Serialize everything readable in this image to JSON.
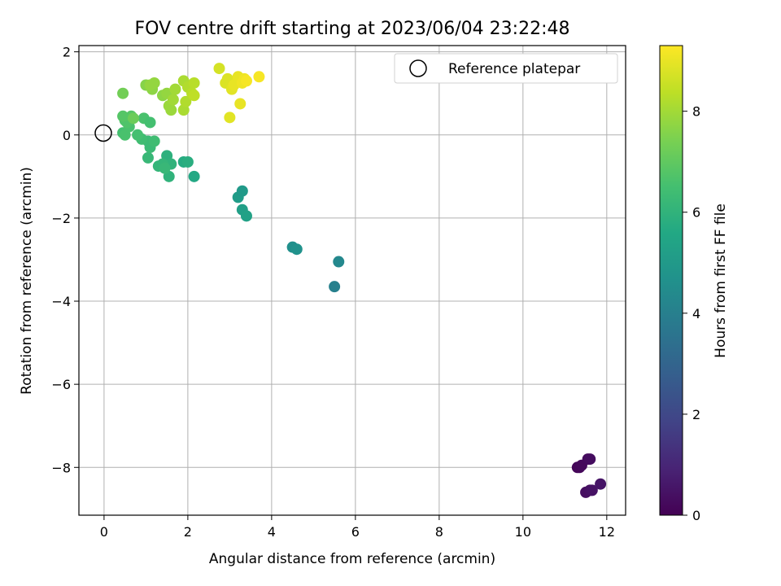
{
  "chart_data": {
    "type": "scatter",
    "title": "FOV centre drift starting at 2023/06/04 23:22:48",
    "xlabel": "Angular distance from reference (arcmin)",
    "ylabel": "Rotation from reference (arcmin)",
    "xlim": [
      -0.6,
      12.45
    ],
    "ylim": [
      -9.15,
      2.15
    ],
    "xticks": [
      0,
      2,
      4,
      6,
      8,
      10,
      12
    ],
    "yticks": [
      -8,
      -6,
      -4,
      -2,
      0,
      2
    ],
    "grid": true,
    "legend": {
      "placement": "top-right",
      "entries": [
        "Reference platepar"
      ]
    },
    "reference_point": {
      "x": 0,
      "y": 0
    },
    "colorbar": {
      "label": "Hours from first FF file",
      "range": [
        0,
        9.3
      ],
      "ticks": [
        0,
        2,
        4,
        6,
        8
      ],
      "colormap": "viridis"
    },
    "points": [
      {
        "x": 11.3,
        "y": -8.0,
        "c": 0.1
      },
      {
        "x": 11.35,
        "y": -8.0,
        "c": 0.15
      },
      {
        "x": 11.4,
        "y": -7.95,
        "c": 0.2
      },
      {
        "x": 11.55,
        "y": -7.8,
        "c": 0.25
      },
      {
        "x": 11.6,
        "y": -7.8,
        "c": 0.3
      },
      {
        "x": 11.5,
        "y": -8.6,
        "c": 0.35
      },
      {
        "x": 11.6,
        "y": -8.55,
        "c": 0.4
      },
      {
        "x": 11.65,
        "y": -8.55,
        "c": 0.45
      },
      {
        "x": 11.85,
        "y": -8.4,
        "c": 0.5
      },
      {
        "x": 5.5,
        "y": -3.65,
        "c": 4.0
      },
      {
        "x": 5.6,
        "y": -3.05,
        "c": 4.3
      },
      {
        "x": 4.5,
        "y": -2.7,
        "c": 4.6
      },
      {
        "x": 4.6,
        "y": -2.75,
        "c": 4.7
      },
      {
        "x": 3.2,
        "y": -1.5,
        "c": 5.1
      },
      {
        "x": 3.3,
        "y": -1.35,
        "c": 5.0
      },
      {
        "x": 3.3,
        "y": -1.8,
        "c": 5.2
      },
      {
        "x": 3.4,
        "y": -1.95,
        "c": 5.3
      },
      {
        "x": 2.15,
        "y": -1.0,
        "c": 5.6
      },
      {
        "x": 1.9,
        "y": -0.65,
        "c": 5.7
      },
      {
        "x": 2.0,
        "y": -0.65,
        "c": 5.8
      },
      {
        "x": 1.5,
        "y": -0.5,
        "c": 5.9
      },
      {
        "x": 1.55,
        "y": -1.0,
        "c": 6.0
      },
      {
        "x": 1.6,
        "y": -0.7,
        "c": 6.0
      },
      {
        "x": 1.3,
        "y": -0.75,
        "c": 6.1
      },
      {
        "x": 1.4,
        "y": -0.7,
        "c": 6.1
      },
      {
        "x": 1.45,
        "y": -0.8,
        "c": 6.2
      },
      {
        "x": 1.05,
        "y": -0.55,
        "c": 6.2
      },
      {
        "x": 1.1,
        "y": -0.3,
        "c": 6.3
      },
      {
        "x": 1.05,
        "y": -0.15,
        "c": 6.3
      },
      {
        "x": 1.2,
        "y": -0.15,
        "c": 6.4
      },
      {
        "x": 0.9,
        "y": -0.1,
        "c": 6.4
      },
      {
        "x": 0.8,
        "y": 0.0,
        "c": 6.5
      },
      {
        "x": 0.45,
        "y": 0.05,
        "c": 6.5
      },
      {
        "x": 0.5,
        "y": 0.0,
        "c": 6.6
      },
      {
        "x": 0.6,
        "y": 0.2,
        "c": 6.6
      },
      {
        "x": 0.5,
        "y": 0.35,
        "c": 6.7
      },
      {
        "x": 0.55,
        "y": 0.3,
        "c": 6.7
      },
      {
        "x": 0.65,
        "y": 0.45,
        "c": 6.8
      },
      {
        "x": 0.45,
        "y": 0.45,
        "c": 6.8
      },
      {
        "x": 0.95,
        "y": 0.4,
        "c": 6.6
      },
      {
        "x": 1.1,
        "y": 0.3,
        "c": 6.5
      },
      {
        "x": 0.7,
        "y": 0.4,
        "c": 7.2
      },
      {
        "x": 0.45,
        "y": 1.0,
        "c": 7.3
      },
      {
        "x": 1.0,
        "y": 1.2,
        "c": 7.6
      },
      {
        "x": 1.15,
        "y": 1.1,
        "c": 7.7
      },
      {
        "x": 1.1,
        "y": 1.2,
        "c": 7.8
      },
      {
        "x": 1.2,
        "y": 1.25,
        "c": 7.8
      },
      {
        "x": 1.4,
        "y": 0.95,
        "c": 7.7
      },
      {
        "x": 1.5,
        "y": 1.0,
        "c": 7.8
      },
      {
        "x": 1.55,
        "y": 0.7,
        "c": 7.9
      },
      {
        "x": 1.6,
        "y": 0.6,
        "c": 7.9
      },
      {
        "x": 1.65,
        "y": 0.85,
        "c": 8.0
      },
      {
        "x": 1.7,
        "y": 1.1,
        "c": 8.0
      },
      {
        "x": 1.9,
        "y": 0.6,
        "c": 8.1
      },
      {
        "x": 1.9,
        "y": 1.3,
        "c": 8.1
      },
      {
        "x": 1.95,
        "y": 0.8,
        "c": 8.2
      },
      {
        "x": 2.0,
        "y": 1.15,
        "c": 8.2
      },
      {
        "x": 2.1,
        "y": 1.0,
        "c": 8.3
      },
      {
        "x": 2.15,
        "y": 1.25,
        "c": 8.3
      },
      {
        "x": 2.15,
        "y": 0.95,
        "c": 8.4
      },
      {
        "x": 2.75,
        "y": 1.6,
        "c": 8.7
      },
      {
        "x": 2.9,
        "y": 1.25,
        "c": 8.8
      },
      {
        "x": 2.95,
        "y": 1.35,
        "c": 8.8
      },
      {
        "x": 3.0,
        "y": 0.42,
        "c": 8.9
      },
      {
        "x": 3.05,
        "y": 1.1,
        "c": 8.9
      },
      {
        "x": 3.1,
        "y": 1.2,
        "c": 9.0
      },
      {
        "x": 3.2,
        "y": 1.4,
        "c": 9.0
      },
      {
        "x": 3.25,
        "y": 0.75,
        "c": 9.0
      },
      {
        "x": 3.3,
        "y": 1.25,
        "c": 9.1
      },
      {
        "x": 3.35,
        "y": 1.35,
        "c": 9.1
      },
      {
        "x": 3.4,
        "y": 1.3,
        "c": 9.2
      },
      {
        "x": 3.7,
        "y": 1.4,
        "c": 9.2
      }
    ]
  }
}
